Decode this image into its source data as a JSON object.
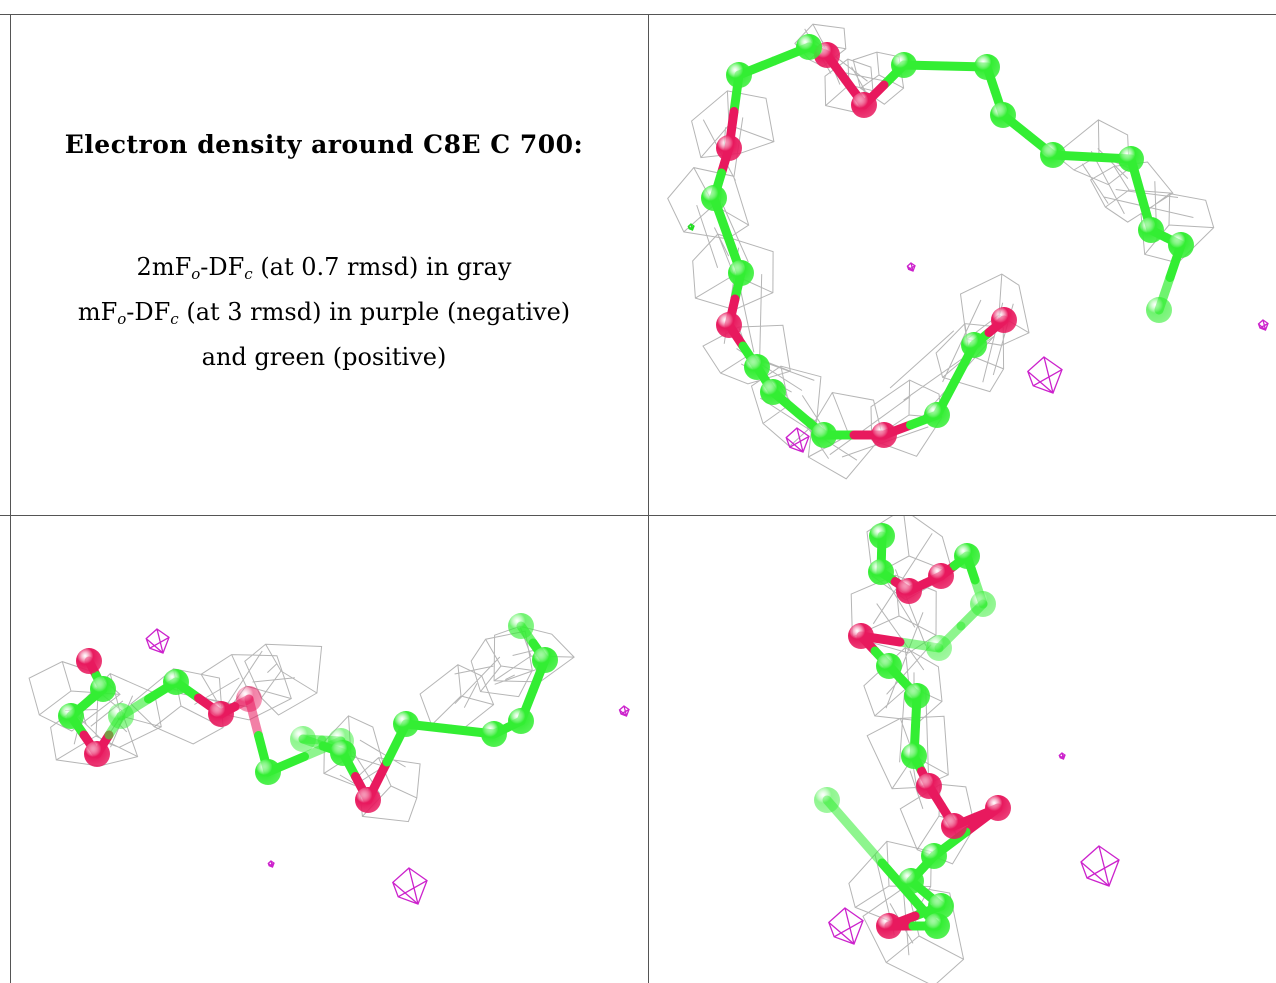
{
  "caption": {
    "title": "Electron density around C8E C 700:",
    "line1": {
      "pre": "2mF",
      "sub1": "o",
      "mid": "-DF",
      "sub2": "c",
      "post": " (at 0.7 rmsd) in gray"
    },
    "line2": {
      "pre": "mF",
      "sub1": "o",
      "mid": "-DF",
      "sub2": "c",
      "post": " (at 3 rmsd) in purple (negative)"
    },
    "line3": "and green (positive)"
  },
  "colors": {
    "carbon": "#33ee33",
    "oxygen": "#e8195e",
    "mesh_2fofc": "#a8a8a8",
    "mesh_negative": "#cc22cc",
    "mesh_positive": "#22dd22",
    "grid_line": "#555555"
  },
  "panels": [
    {
      "name": "view-top-right"
    },
    {
      "name": "view-bottom-left"
    },
    {
      "name": "view-bottom-right"
    }
  ]
}
